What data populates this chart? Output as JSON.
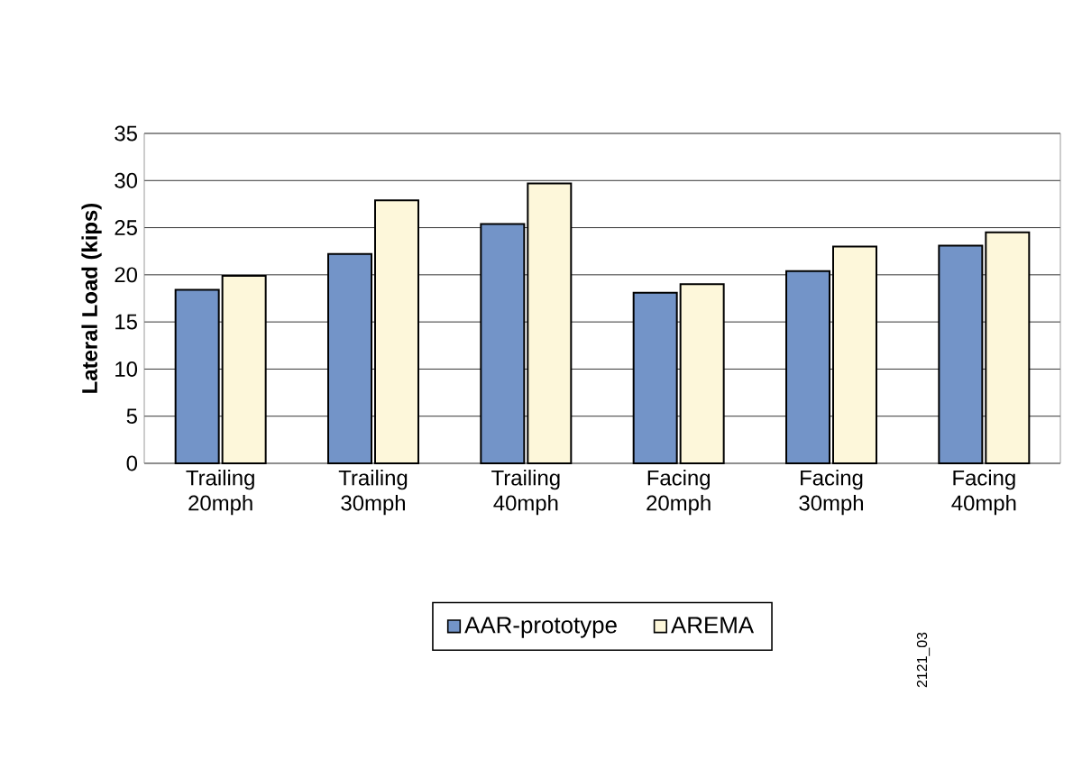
{
  "chart_data": {
    "type": "bar",
    "ylabel": "Lateral Load (kips)",
    "categories": [
      "Trailing 20mph",
      "Trailing 30mph",
      "Trailing 40mph",
      "Facing 20mph",
      "Facing 30mph",
      "Facing 40mph"
    ],
    "series": [
      {
        "name": "AAR-prototype",
        "color": "#7394c8",
        "values": [
          18.4,
          22.2,
          25.4,
          18.1,
          20.4,
          23.1
        ]
      },
      {
        "name": "AREMA",
        "color": "#fdf7da",
        "values": [
          19.9,
          27.9,
          29.7,
          19.0,
          23.0,
          24.5
        ]
      }
    ],
    "ylim": [
      0,
      35
    ],
    "yticks": [
      0,
      5,
      10,
      15,
      20,
      25,
      30,
      35
    ],
    "grid": "y",
    "legend": "bottom",
    "annotations": [
      "2121_03"
    ]
  }
}
